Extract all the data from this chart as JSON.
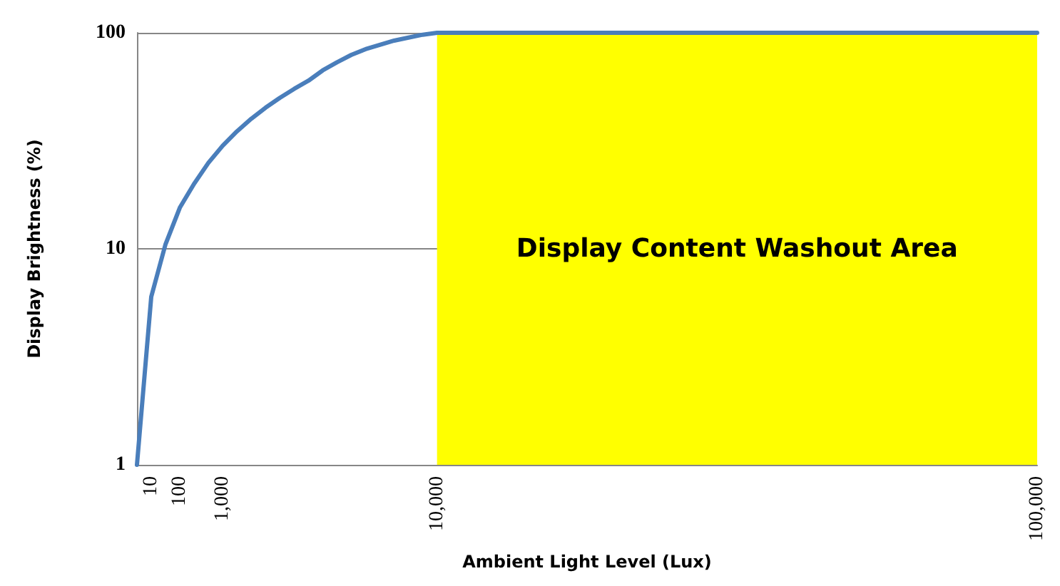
{
  "chart_data": {
    "type": "line",
    "xlabel": "Ambient Light Level (Lux)",
    "ylabel": "Display Brightness (%)",
    "categories": [
      null,
      "10",
      null,
      "100",
      null,
      null,
      "1,000",
      null,
      null,
      null,
      null,
      null,
      null,
      null,
      null,
      null,
      null,
      null,
      null,
      null,
      null,
      "10,000",
      null,
      null,
      null,
      null,
      null,
      null,
      null,
      null,
      null,
      null,
      null,
      null,
      null,
      null,
      null,
      null,
      null,
      null,
      null,
      null,
      null,
      null,
      null,
      null,
      null,
      null,
      null,
      null,
      null,
      null,
      null,
      null,
      null,
      null,
      null,
      null,
      null,
      null,
      null,
      null,
      null,
      "100,000"
    ],
    "series": [
      {
        "color": "#4a7ebb",
        "values": [
          1,
          6,
          10.5,
          15.5,
          20,
          25,
          30,
          35,
          40,
          45,
          50,
          55,
          60,
          67,
          73,
          79,
          84,
          88,
          92,
          95,
          98,
          100,
          100,
          100,
          100,
          100,
          100,
          100,
          100,
          100,
          100,
          100,
          100,
          100,
          100,
          100,
          100,
          100,
          100,
          100,
          100,
          100,
          100,
          100,
          100,
          100,
          100,
          100,
          100,
          100,
          100,
          100,
          100,
          100,
          100,
          100,
          100,
          100,
          100,
          100,
          100,
          100,
          100,
          100
        ]
      }
    ],
    "log": "y",
    "ylim": [
      1,
      100
    ],
    "yticks": [
      1,
      10,
      100
    ],
    "grid": "y",
    "marker": "none",
    "line_style": "solid",
    "bands": [
      {
        "axis": "x",
        "from": "10,000",
        "to": "100,000",
        "label": "Display Content Washout Area",
        "color": "#ffff00"
      }
    ]
  }
}
